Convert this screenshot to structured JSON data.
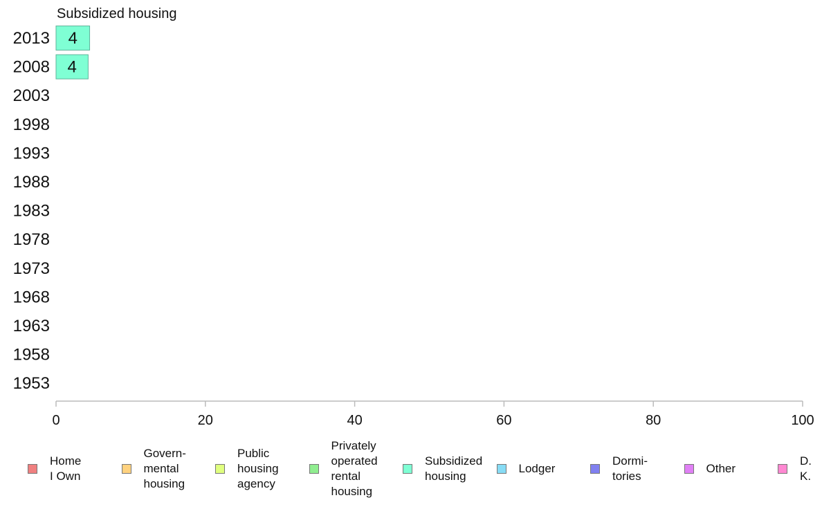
{
  "chart_data": {
    "type": "bar",
    "orientation": "horizontal",
    "title": "Subsidized housing",
    "xlabel": "",
    "ylabel": "",
    "xlim": [
      0,
      100
    ],
    "x_ticks": [
      "0",
      "20",
      "40",
      "60",
      "80",
      "100"
    ],
    "categories": [
      "2013",
      "2008",
      "2003",
      "1998",
      "1993",
      "1988",
      "1983",
      "1978",
      "1973",
      "1968",
      "1963",
      "1958",
      "1953"
    ],
    "series": [
      {
        "name": "Subsidized housing",
        "color": "#7fffd4",
        "values": [
          4.5,
          4.3,
          null,
          null,
          null,
          null,
          null,
          null,
          null,
          null,
          null,
          null,
          null
        ],
        "labels": [
          "4",
          "4",
          "",
          "",
          "",
          "",
          "",
          "",
          "",
          "",
          "",
          "",
          ""
        ]
      }
    ],
    "grid": false,
    "legend_position": "bottom",
    "legend": [
      {
        "label": "Home\nI Own",
        "color": "#f08080"
      },
      {
        "label": "Govern-\nmental\n housing",
        "color": "#ffd27f"
      },
      {
        "label": "Public\nhousing\nagency",
        "color": "#e0ff7f"
      },
      {
        "label": "Privately\noperated\nrental\nhousing",
        "color": "#90ee90"
      },
      {
        "label": "Subsidized\n housing",
        "color": "#7fffd4"
      },
      {
        "label": "Lodger",
        "color": "#87dcf5"
      },
      {
        "label": "Dormi-\ntories",
        "color": "#8080f0"
      },
      {
        "label": "Other",
        "color": "#e080f5"
      },
      {
        "label": "D. K.",
        "color": "#ff88d2"
      }
    ]
  }
}
